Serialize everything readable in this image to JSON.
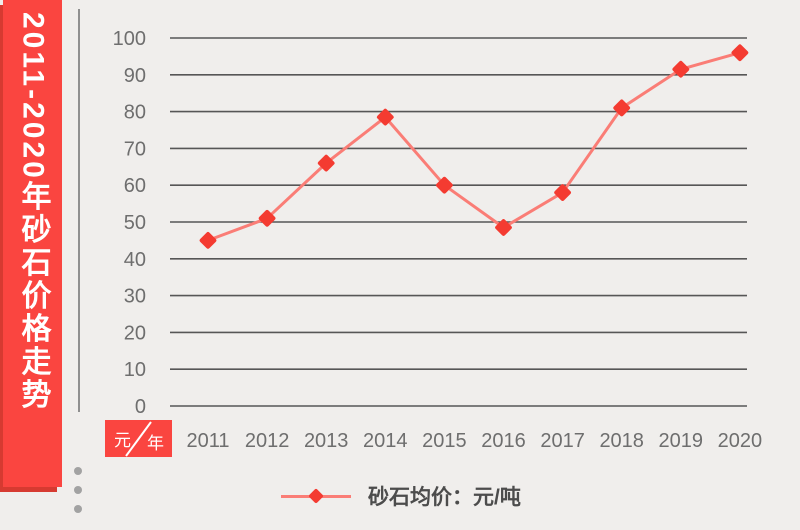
{
  "banner": {
    "title": "2011-2020年砂石价格走势"
  },
  "axis_corner": {
    "y_unit": "元",
    "x_unit": "年"
  },
  "legend": {
    "label": "砂石均价：元/吨"
  },
  "colors": {
    "banner": "#fa4540",
    "banner_shadow": "#d63a31",
    "line": "#fa7d76",
    "marker": "#f43b31",
    "grid": "#565656",
    "axis": "#8f8f8f",
    "tick_text": "#6e6e6e",
    "legend_text": "#4c4c4c",
    "background": "#f0eeec",
    "dots": "#a2a2a2",
    "white": "#ffffff"
  },
  "chart_data": {
    "type": "line",
    "title": "2011-2020年砂石价格走势",
    "categories": [
      "2011",
      "2012",
      "2013",
      "2014",
      "2015",
      "2016",
      "2017",
      "2018",
      "2019",
      "2020"
    ],
    "series": [
      {
        "name": "砂石均价：元/吨",
        "values": [
          45,
          51,
          66,
          78.5,
          60,
          48.5,
          58,
          81,
          91.5,
          96
        ]
      }
    ],
    "xlabel": "年",
    "ylabel": "元",
    "ylim": [
      0,
      100
    ],
    "ytick_step": 10,
    "grid": true,
    "legend_position": "bottom",
    "marker": "diamond"
  }
}
